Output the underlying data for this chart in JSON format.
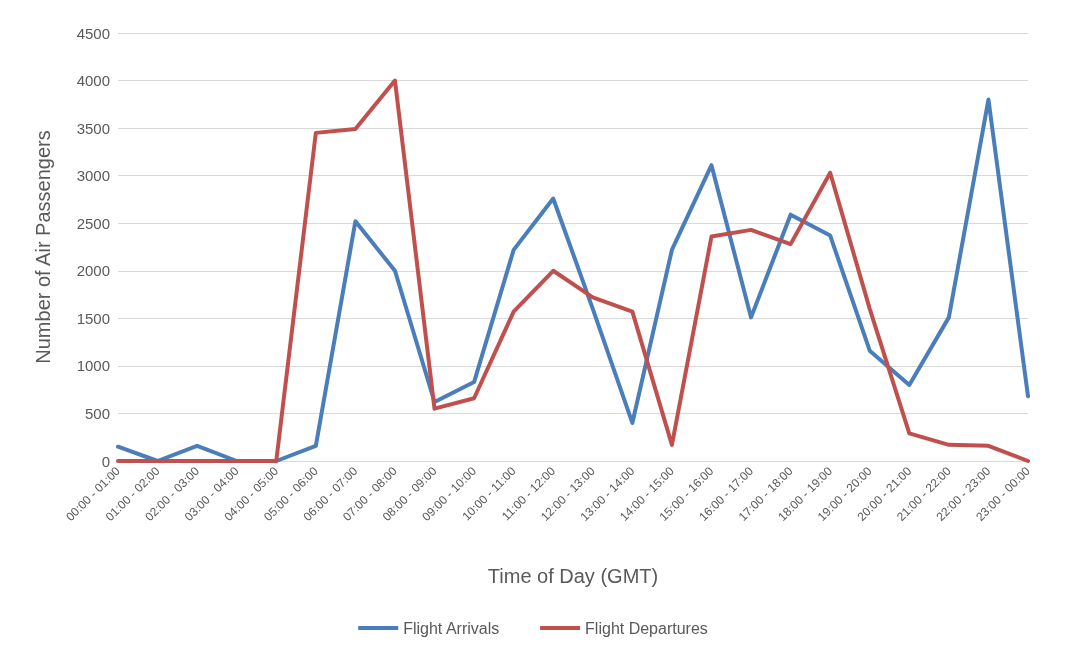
{
  "chart_data": {
    "type": "line",
    "xlabel": "Time of Day (GMT)",
    "ylabel": "Number of Air Passengers",
    "categories": [
      "00:00 - 01:00",
      "01:00 - 02:00",
      "02:00 - 03:00",
      "03:00 - 04:00",
      "04:00 - 05:00",
      "05:00 - 06:00",
      "06:00 - 07:00",
      "07:00 - 08:00",
      "08:00 - 09:00",
      "09:00 - 10:00",
      "10:00 - 11:00",
      "11:00 - 12:00",
      "12:00 - 13:00",
      "13:00 - 14:00",
      "14:00 - 15:00",
      "15:00 - 16:00",
      "16:00 - 17:00",
      "17:00 - 18:00",
      "18:00 - 19:00",
      "19:00 - 20:00",
      "20:00 - 21:00",
      "21:00 - 22:00",
      "22:00 - 23:00",
      "23:00 - 00:00"
    ],
    "series": [
      {
        "name": "Flight Arrivals",
        "color": "#4a7ebb",
        "values": [
          150,
          0,
          160,
          0,
          0,
          160,
          2520,
          2000,
          620,
          830,
          2220,
          2760,
          1600,
          400,
          2220,
          3110,
          1510,
          2590,
          2370,
          1160,
          800,
          1510,
          3800,
          680
        ]
      },
      {
        "name": "Flight Departures",
        "color": "#c0504d",
        "values": [
          0,
          0,
          0,
          0,
          0,
          3450,
          3490,
          4000,
          550,
          660,
          1570,
          2000,
          1720,
          1570,
          170,
          2360,
          2430,
          2280,
          3030,
          1600,
          290,
          170,
          160,
          0
        ]
      }
    ],
    "ylim": [
      0,
      4500
    ],
    "yticks": [
      0,
      500,
      1000,
      1500,
      2000,
      2500,
      3000,
      3500,
      4000,
      4500
    ],
    "grid": "y",
    "legend": "bottom",
    "marker": "none",
    "line_style": "solid"
  }
}
